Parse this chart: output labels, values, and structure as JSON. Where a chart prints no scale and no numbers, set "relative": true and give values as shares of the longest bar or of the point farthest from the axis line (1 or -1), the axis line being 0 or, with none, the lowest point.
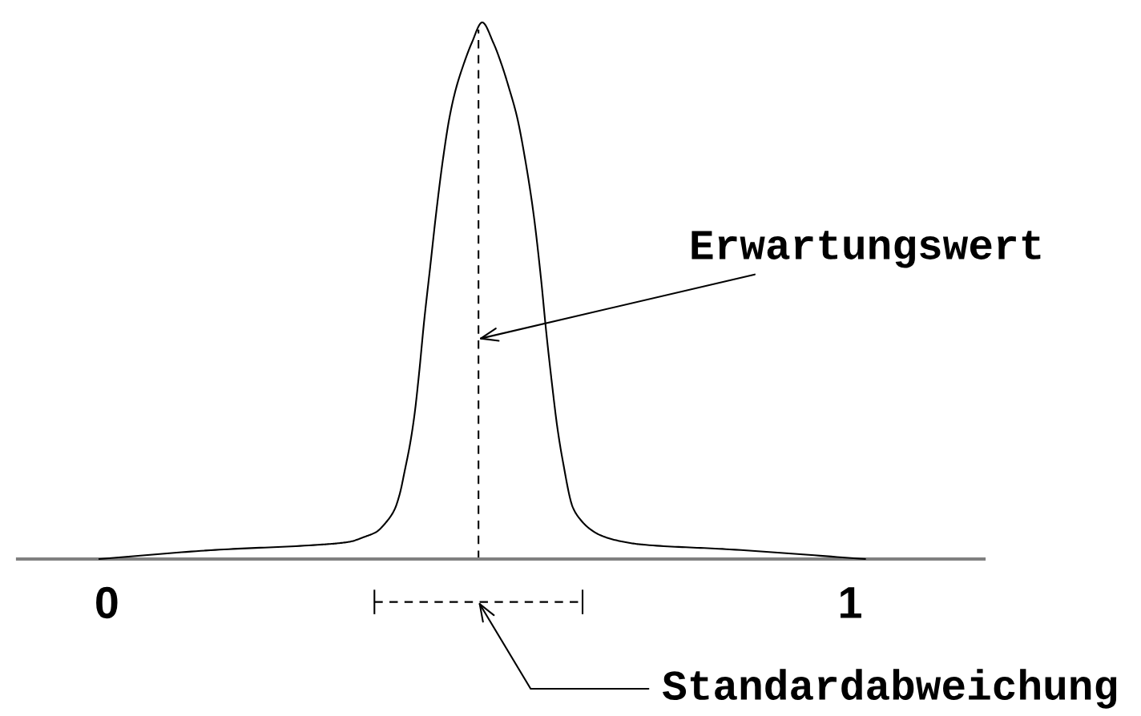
{
  "chart_data": {
    "type": "line",
    "relative": true,
    "xlim": [
      -0.12,
      1.18
    ],
    "xticks": [
      0,
      1
    ],
    "tick_labels": "x",
    "series": [
      {
        "color": "#000000",
        "x": [
          -0.01,
          0.146,
          0.29,
          0.326,
          0.348,
          0.362,
          0.376,
          0.387,
          0.394,
          0.401,
          0.408,
          0.414,
          0.42,
          0.427,
          0.435,
          0.443,
          0.452,
          0.461,
          0.469,
          0.48,
          0.491,
          0.505,
          0.52,
          0.531,
          0.541,
          0.552,
          0.563,
          0.574,
          0.584,
          0.591,
          0.599,
          0.606,
          0.613,
          0.627,
          0.638,
          0.649,
          0.663,
          0.685,
          0.72,
          0.838,
          1.02
        ],
        "values": [
          0,
          0.017,
          0.027,
          0.032,
          0.042,
          0.05,
          0.069,
          0.092,
          0.121,
          0.166,
          0.215,
          0.27,
          0.345,
          0.445,
          0.544,
          0.644,
          0.743,
          0.823,
          0.873,
          0.922,
          0.962,
          1,
          0.962,
          0.922,
          0.878,
          0.823,
          0.743,
          0.644,
          0.524,
          0.425,
          0.325,
          0.246,
          0.186,
          0.096,
          0.072,
          0.057,
          0.045,
          0.035,
          0.027,
          0.018,
          0
        ]
      },
      {
        "color": "#000000",
        "x": [
          0.36,
          0.64
        ],
        "values": [
          -0.08,
          -0.08
        ],
        "line_style": "dashed"
      }
    ],
    "ref_lines": [
      {
        "axis": "x",
        "value": 0.5,
        "color": "#000000",
        "line_style": "dashed"
      }
    ],
    "annotations": [
      {
        "text": "Erwartungswert",
        "x": 0.5,
        "y": 0.41
      },
      {
        "text": "Standardabweichung",
        "x": 0.5,
        "y": -0.08
      }
    ]
  }
}
